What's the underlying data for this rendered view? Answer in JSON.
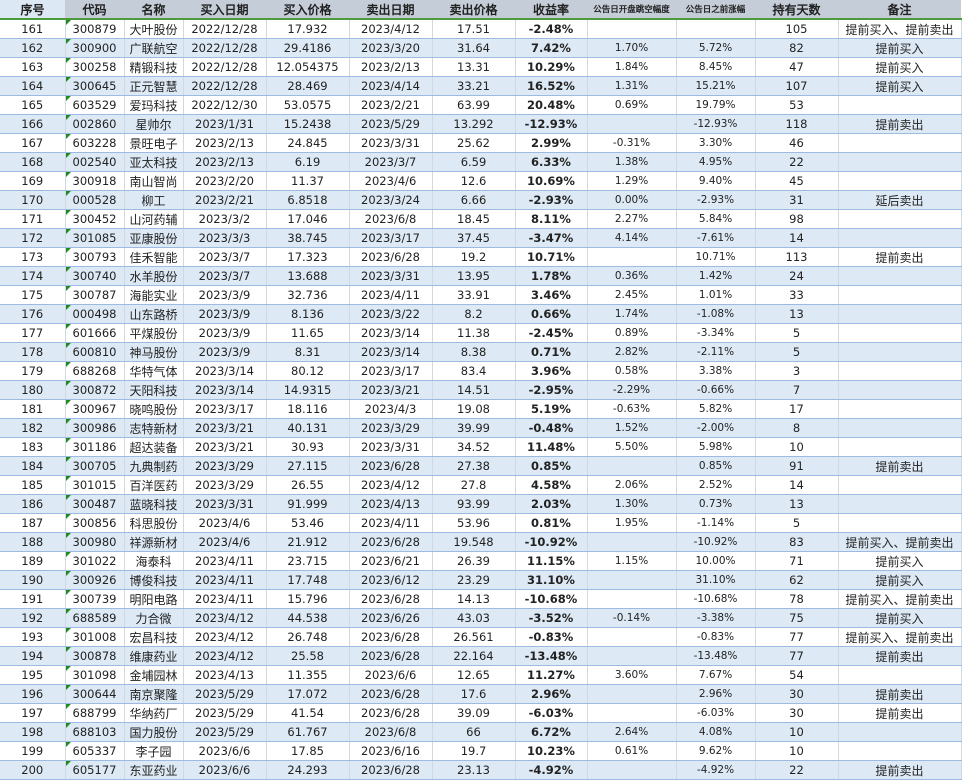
{
  "headers": [
    "序号",
    "代码",
    "名称",
    "买入日期",
    "买入价格",
    "卖出日期",
    "卖出价格",
    "收益率",
    "公告日开盘跳空幅度",
    "公告日之前涨幅",
    "持有天数",
    "备注"
  ],
  "rows": [
    [
      "161",
      "300879",
      "大叶股份",
      "2022/12/28",
      "17.932",
      "2023/4/12",
      "17.51",
      "-2.48%",
      "",
      "",
      "105",
      "提前买入、提前卖出"
    ],
    [
      "162",
      "300900",
      "广联航空",
      "2022/12/28",
      "29.4186",
      "2023/3/20",
      "31.64",
      "7.42%",
      "1.70%",
      "5.72%",
      "82",
      "提前买入"
    ],
    [
      "163",
      "300258",
      "精锻科技",
      "2022/12/28",
      "12.054375",
      "2023/2/13",
      "13.31",
      "10.29%",
      "1.84%",
      "8.45%",
      "47",
      "提前买入"
    ],
    [
      "164",
      "300645",
      "正元智慧",
      "2022/12/28",
      "28.469",
      "2023/4/14",
      "33.21",
      "16.52%",
      "1.31%",
      "15.21%",
      "107",
      "提前买入"
    ],
    [
      "165",
      "603529",
      "爱玛科技",
      "2022/12/30",
      "53.0575",
      "2023/2/21",
      "63.99",
      "20.48%",
      "0.69%",
      "19.79%",
      "53",
      ""
    ],
    [
      "166",
      "002860",
      "星帅尔",
      "2023/1/31",
      "15.2438",
      "2023/5/29",
      "13.292",
      "-12.93%",
      "",
      "-12.93%",
      "118",
      "提前卖出"
    ],
    [
      "167",
      "603228",
      "景旺电子",
      "2023/2/13",
      "24.845",
      "2023/3/31",
      "25.62",
      "2.99%",
      "-0.31%",
      "3.30%",
      "46",
      ""
    ],
    [
      "168",
      "002540",
      "亚太科技",
      "2023/2/13",
      "6.19",
      "2023/3/7",
      "6.59",
      "6.33%",
      "1.38%",
      "4.95%",
      "22",
      ""
    ],
    [
      "169",
      "300918",
      "南山智尚",
      "2023/2/20",
      "11.37",
      "2023/4/6",
      "12.6",
      "10.69%",
      "1.29%",
      "9.40%",
      "45",
      ""
    ],
    [
      "170",
      "000528",
      "柳工",
      "2023/2/21",
      "6.8518",
      "2023/3/24",
      "6.66",
      "-2.93%",
      "0.00%",
      "-2.93%",
      "31",
      "延后卖出"
    ],
    [
      "171",
      "300452",
      "山河药辅",
      "2023/3/2",
      "17.046",
      "2023/6/8",
      "18.45",
      "8.11%",
      "2.27%",
      "5.84%",
      "98",
      ""
    ],
    [
      "172",
      "301085",
      "亚康股份",
      "2023/3/3",
      "38.745",
      "2023/3/17",
      "37.45",
      "-3.47%",
      "4.14%",
      "-7.61%",
      "14",
      ""
    ],
    [
      "173",
      "300793",
      "佳禾智能",
      "2023/3/7",
      "17.323",
      "2023/6/28",
      "19.2",
      "10.71%",
      "",
      "10.71%",
      "113",
      "提前卖出"
    ],
    [
      "174",
      "300740",
      "水羊股份",
      "2023/3/7",
      "13.688",
      "2023/3/31",
      "13.95",
      "1.78%",
      "0.36%",
      "1.42%",
      "24",
      ""
    ],
    [
      "175",
      "300787",
      "海能实业",
      "2023/3/9",
      "32.736",
      "2023/4/11",
      "33.91",
      "3.46%",
      "2.45%",
      "1.01%",
      "33",
      ""
    ],
    [
      "176",
      "000498",
      "山东路桥",
      "2023/3/9",
      "8.136",
      "2023/3/22",
      "8.2",
      "0.66%",
      "1.74%",
      "-1.08%",
      "13",
      ""
    ],
    [
      "177",
      "601666",
      "平煤股份",
      "2023/3/9",
      "11.65",
      "2023/3/14",
      "11.38",
      "-2.45%",
      "0.89%",
      "-3.34%",
      "5",
      ""
    ],
    [
      "178",
      "600810",
      "神马股份",
      "2023/3/9",
      "8.31",
      "2023/3/14",
      "8.38",
      "0.71%",
      "2.82%",
      "-2.11%",
      "5",
      ""
    ],
    [
      "179",
      "688268",
      "华特气体",
      "2023/3/14",
      "80.12",
      "2023/3/17",
      "83.4",
      "3.96%",
      "0.58%",
      "3.38%",
      "3",
      ""
    ],
    [
      "180",
      "300872",
      "天阳科技",
      "2023/3/14",
      "14.9315",
      "2023/3/21",
      "14.51",
      "-2.95%",
      "-2.29%",
      "-0.66%",
      "7",
      ""
    ],
    [
      "181",
      "300967",
      "晓鸣股份",
      "2023/3/17",
      "18.116",
      "2023/4/3",
      "19.08",
      "5.19%",
      "-0.63%",
      "5.82%",
      "17",
      ""
    ],
    [
      "182",
      "300986",
      "志特新材",
      "2023/3/21",
      "40.131",
      "2023/3/29",
      "39.99",
      "-0.48%",
      "1.52%",
      "-2.00%",
      "8",
      ""
    ],
    [
      "183",
      "301186",
      "超达装备",
      "2023/3/21",
      "30.93",
      "2023/3/31",
      "34.52",
      "11.48%",
      "5.50%",
      "5.98%",
      "10",
      ""
    ],
    [
      "184",
      "300705",
      "九典制药",
      "2023/3/29",
      "27.115",
      "2023/6/28",
      "27.38",
      "0.85%",
      "",
      "0.85%",
      "91",
      "提前卖出"
    ],
    [
      "185",
      "301015",
      "百洋医药",
      "2023/3/29",
      "26.55",
      "2023/4/12",
      "27.8",
      "4.58%",
      "2.06%",
      "2.52%",
      "14",
      ""
    ],
    [
      "186",
      "300487",
      "蓝晓科技",
      "2023/3/31",
      "91.999",
      "2023/4/13",
      "93.99",
      "2.03%",
      "1.30%",
      "0.73%",
      "13",
      ""
    ],
    [
      "187",
      "300856",
      "科思股份",
      "2023/4/6",
      "53.46",
      "2023/4/11",
      "53.96",
      "0.81%",
      "1.95%",
      "-1.14%",
      "5",
      ""
    ],
    [
      "188",
      "300980",
      "祥源新材",
      "2023/4/6",
      "21.912",
      "2023/6/28",
      "19.548",
      "-10.92%",
      "",
      "-10.92%",
      "83",
      "提前买入、提前卖出"
    ],
    [
      "189",
      "301022",
      "海泰科",
      "2023/4/11",
      "23.715",
      "2023/6/21",
      "26.39",
      "11.15%",
      "1.15%",
      "10.00%",
      "71",
      "提前买入"
    ],
    [
      "190",
      "300926",
      "博俊科技",
      "2023/4/11",
      "17.748",
      "2023/6/12",
      "23.29",
      "31.10%",
      "",
      "31.10%",
      "62",
      "提前买入"
    ],
    [
      "191",
      "300739",
      "明阳电路",
      "2023/4/11",
      "15.796",
      "2023/6/28",
      "14.13",
      "-10.68%",
      "",
      "-10.68%",
      "78",
      "提前买入、提前卖出"
    ],
    [
      "192",
      "688589",
      "力合微",
      "2023/4/12",
      "44.538",
      "2023/6/26",
      "43.03",
      "-3.52%",
      "-0.14%",
      "-3.38%",
      "75",
      "提前买入"
    ],
    [
      "193",
      "301008",
      "宏昌科技",
      "2023/4/12",
      "26.748",
      "2023/6/28",
      "26.561",
      "-0.83%",
      "",
      "-0.83%",
      "77",
      "提前买入、提前卖出"
    ],
    [
      "194",
      "300878",
      "维康药业",
      "2023/4/12",
      "25.58",
      "2023/6/28",
      "22.164",
      "-13.48%",
      "",
      "-13.48%",
      "77",
      "提前卖出"
    ],
    [
      "195",
      "301098",
      "金埔园林",
      "2023/4/13",
      "11.355",
      "2023/6/6",
      "12.65",
      "11.27%",
      "3.60%",
      "7.67%",
      "54",
      ""
    ],
    [
      "196",
      "300644",
      "南京聚隆",
      "2023/5/29",
      "17.072",
      "2023/6/28",
      "17.6",
      "2.96%",
      "",
      "2.96%",
      "30",
      "提前卖出"
    ],
    [
      "197",
      "688799",
      "华纳药厂",
      "2023/5/29",
      "41.54",
      "2023/6/28",
      "39.09",
      "-6.03%",
      "",
      "-6.03%",
      "30",
      "提前卖出"
    ],
    [
      "198",
      "688103",
      "国力股份",
      "2023/5/29",
      "61.767",
      "2023/6/8",
      "66",
      "6.72%",
      "2.64%",
      "4.08%",
      "10",
      ""
    ],
    [
      "199",
      "605337",
      "李子园",
      "2023/6/6",
      "17.85",
      "2023/6/16",
      "19.7",
      "10.23%",
      "0.61%",
      "9.62%",
      "10",
      ""
    ],
    [
      "200",
      "605177",
      "东亚药业",
      "2023/6/6",
      "24.293",
      "2023/6/28",
      "23.13",
      "-4.92%",
      "",
      "-4.92%",
      "22",
      "提前卖出"
    ]
  ],
  "colors": {
    "header_bg": "#c5ced8",
    "alt_row_bg": "#dde9f5",
    "header_border": "#4c9a3c"
  }
}
